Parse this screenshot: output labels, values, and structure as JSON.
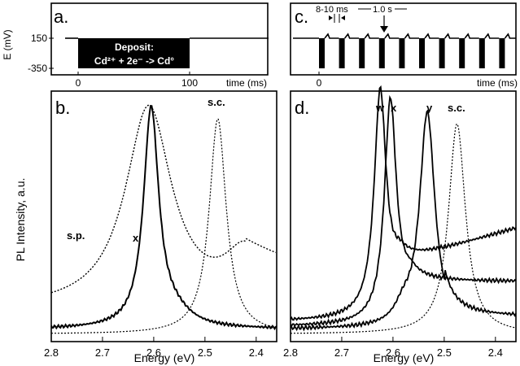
{
  "figure": {
    "panel_a": {
      "letter": "a.",
      "ylabel": "E (mV)",
      "xlabel": "time (ms)",
      "yticks": [
        "150",
        "-350"
      ],
      "xticks": [
        "0",
        "100"
      ],
      "deposit_title": "Deposit:",
      "deposit_reaction": "Cd²⁺ + 2e⁻ -> Cd°"
    },
    "panel_c": {
      "letter": "c.",
      "xlabel": "time (ms)",
      "xticks": [
        "0"
      ],
      "annot_pulse": "8-10 ms",
      "annot_period": "1.0 s"
    },
    "panel_b": {
      "letter": "b.",
      "xlabel": "Energy (eV)",
      "xticks": [
        "2.8",
        "2.7",
        "2.6",
        "2.5",
        "2.4"
      ]
    },
    "panel_d": {
      "letter": "d.",
      "xlabel": "Energy (eV)",
      "xticks": [
        "2.8",
        "2.7",
        "2.6",
        "2.5",
        "2.4"
      ]
    },
    "shared_ylabel": "PL Intensity, a.u."
  },
  "chart_data": [
    {
      "panel": "a",
      "type": "line",
      "x": [
        -10,
        0,
        0,
        100,
        100,
        165
      ],
      "y": [
        150,
        150,
        -350,
        -350,
        150,
        150
      ],
      "xlabel": "time (ms)",
      "ylabel": "E (mV)"
    },
    {
      "panel": "c",
      "type": "line",
      "pulse_count": 10,
      "pulse_width_ms": [
        8,
        10
      ],
      "period_s": 1.0,
      "xlabel": "time (ms)"
    },
    {
      "panel": "b",
      "type": "line",
      "xlabel": "Energy (eV)",
      "xlim": [
        2.8,
        2.36
      ],
      "series": [
        {
          "name": "s.p.",
          "style": "dotted",
          "peak_eV": 2.61
        },
        {
          "name": "x",
          "style": "solid",
          "peak_eV": 2.605
        },
        {
          "name": "s.c.",
          "style": "dotted",
          "peak_eV": 2.475
        }
      ]
    },
    {
      "panel": "d",
      "type": "line",
      "xlabel": "Energy (eV)",
      "xlim": [
        2.8,
        2.36
      ],
      "series": [
        {
          "name": "w",
          "style": "solid",
          "peak_eV": 2.625
        },
        {
          "name": "x",
          "style": "solid",
          "peak_eV": 2.605
        },
        {
          "name": "y",
          "style": "solid",
          "peak_eV": 2.533
        },
        {
          "name": "s.c.",
          "style": "dotted",
          "peak_eV": 2.475
        }
      ]
    }
  ]
}
